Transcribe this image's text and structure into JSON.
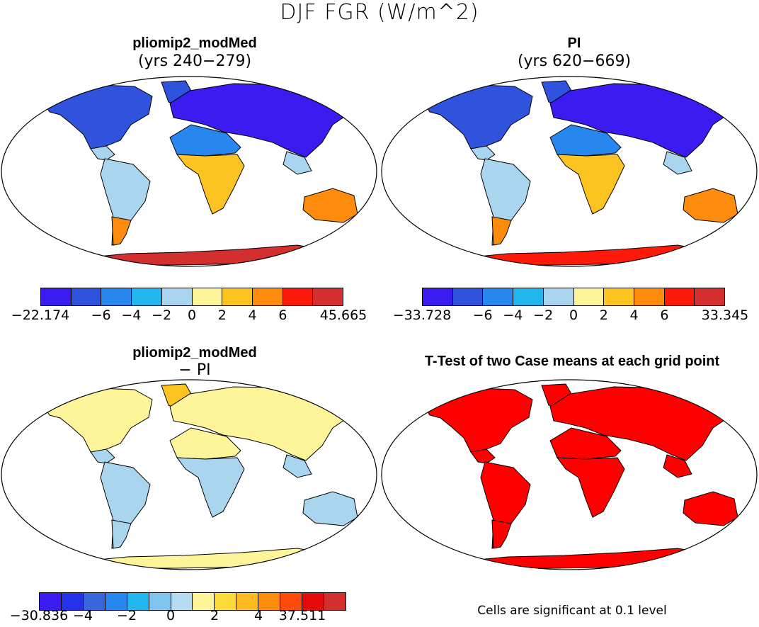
{
  "figure_title": "DJF FGR (W/m^2)",
  "panels": [
    {
      "title": "pliomip2_modMed",
      "subtitle": "(yrs 240−279)",
      "colorbar": {
        "colors": [
          "#3a1cf0",
          "#2f53dc",
          "#2787ee",
          "#21b7ee",
          "#a9d6ee",
          "#fef49a",
          "#fdc421",
          "#fd8c0c",
          "#fe1a0a",
          "#d32f2e"
        ],
        "labels": [
          "−22.174",
          "−6",
          "−4",
          "−2",
          "0",
          "2",
          "4",
          "6",
          "45.665"
        ]
      },
      "continent_colors": {
        "north_america": "#2f53dc",
        "greenland": "#2f53dc",
        "eurasia": "#3a1cf0",
        "tropics": "#a9d6ee",
        "south_america": "#a9d6ee",
        "patagonia": "#fd8c0c",
        "africa_north": "#2787ee",
        "africa_south": "#fdc421",
        "australia": "#fd8c0c",
        "antarctica": "#d32f2e"
      }
    },
    {
      "title": "PI",
      "subtitle": "(yrs 620−669)",
      "colorbar": {
        "colors": [
          "#3a1cf0",
          "#2f53dc",
          "#2787ee",
          "#21b7ee",
          "#a9d6ee",
          "#fef49a",
          "#fdc421",
          "#fd8c0c",
          "#fe1a0a",
          "#d32f2e"
        ],
        "labels": [
          "−33.728",
          "−6",
          "−4",
          "−2",
          "0",
          "2",
          "4",
          "6",
          "33.345"
        ]
      },
      "continent_colors": {
        "north_america": "#2f53dc",
        "greenland": "#2f53dc",
        "eurasia": "#3a1cf0",
        "tropics": "#a9d6ee",
        "south_america": "#a9d6ee",
        "patagonia": "#fd8c0c",
        "africa_north": "#2787ee",
        "africa_south": "#fdc421",
        "australia": "#fd8c0c",
        "antarctica": "#fe1a0a"
      }
    },
    {
      "title": "pliomip2_modMed",
      "subtitle": "− PI",
      "colorbar": {
        "colors": [
          "#3a1cf0",
          "#2331e8",
          "#3866dc",
          "#2787ee",
          "#21b7ee",
          "#7dc4ee",
          "#b5dbf0",
          "#fef49a",
          "#fdd93a",
          "#fdbb21",
          "#fd8c0c",
          "#fe4a0a",
          "#e50b0b",
          "#d32f2e"
        ],
        "labels": [
          "−30.836",
          "−4",
          "−2",
          "0",
          "2",
          "4",
          "37.511"
        ]
      },
      "continent_colors": {
        "north_america": "#fef49a",
        "greenland": "#fdc421",
        "eurasia": "#fef49a",
        "tropics": "#a9d6ee",
        "south_america": "#a9d6ee",
        "patagonia": "#a9d6ee",
        "africa_north": "#fef49a",
        "africa_south": "#a9d6ee",
        "australia": "#a9d6ee",
        "antarctica": "#fef49a"
      }
    },
    {
      "title": "T-Test of two Case means at each grid point",
      "subtitle": "",
      "note": "Cells are significant at 0.1 level",
      "continent_colors": {
        "north_america": "#ff0000",
        "greenland": "#ff0000",
        "eurasia": "#ff0000",
        "tropics": "#ff0000",
        "south_america": "#ff0000",
        "patagonia": "#ff0000",
        "africa_north": "#ff0000",
        "africa_south": "#ff0000",
        "australia": "#ff0000",
        "antarctica": "#ff0000"
      }
    }
  ]
}
